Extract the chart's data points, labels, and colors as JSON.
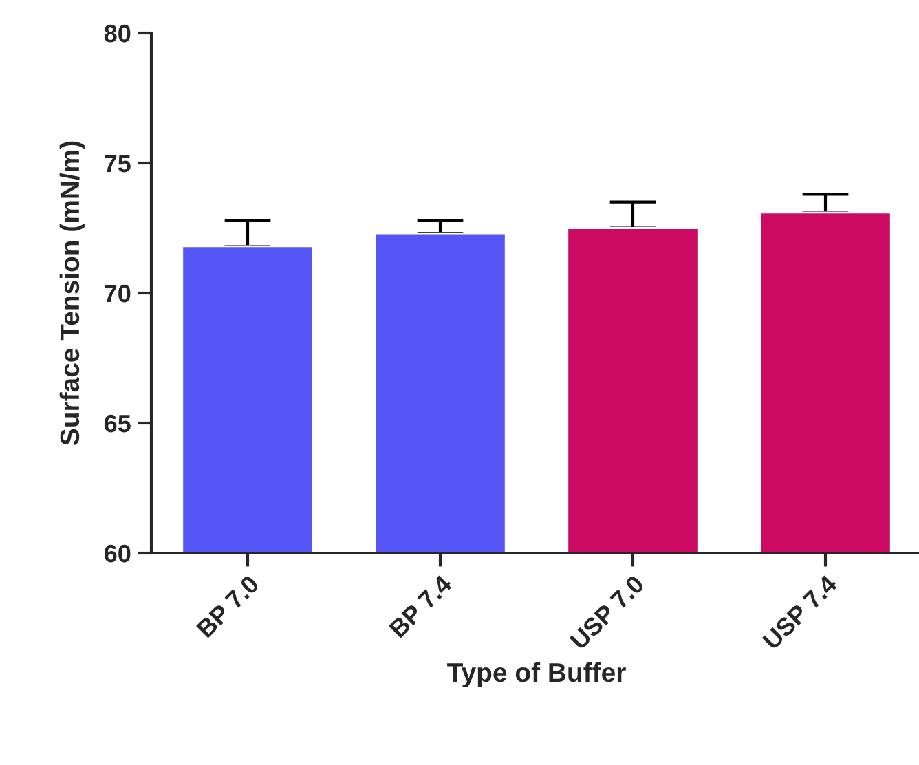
{
  "chart_data": {
    "type": "bar",
    "xlabel": "Type of Buffer",
    "ylabel": "Surface Tension (mN/m)",
    "categories": [
      "BP 7.0",
      "BP 7.4",
      "USP 7.0",
      "USP 7.4"
    ],
    "values": [
      71.8,
      72.3,
      72.5,
      73.1
    ],
    "colors": [
      "#5555f6",
      "#5555f6",
      "#cc0a62",
      "#cc0a62"
    ],
    "errors": [
      [
        71.8,
        72.8
      ],
      [
        72.3,
        72.8
      ],
      [
        72.5,
        73.5
      ],
      [
        73.1,
        73.8
      ]
    ],
    "ylim": [
      60,
      80
    ],
    "yticks": [
      60,
      65,
      70,
      75,
      80
    ],
    "grid": false,
    "legend": false
  }
}
